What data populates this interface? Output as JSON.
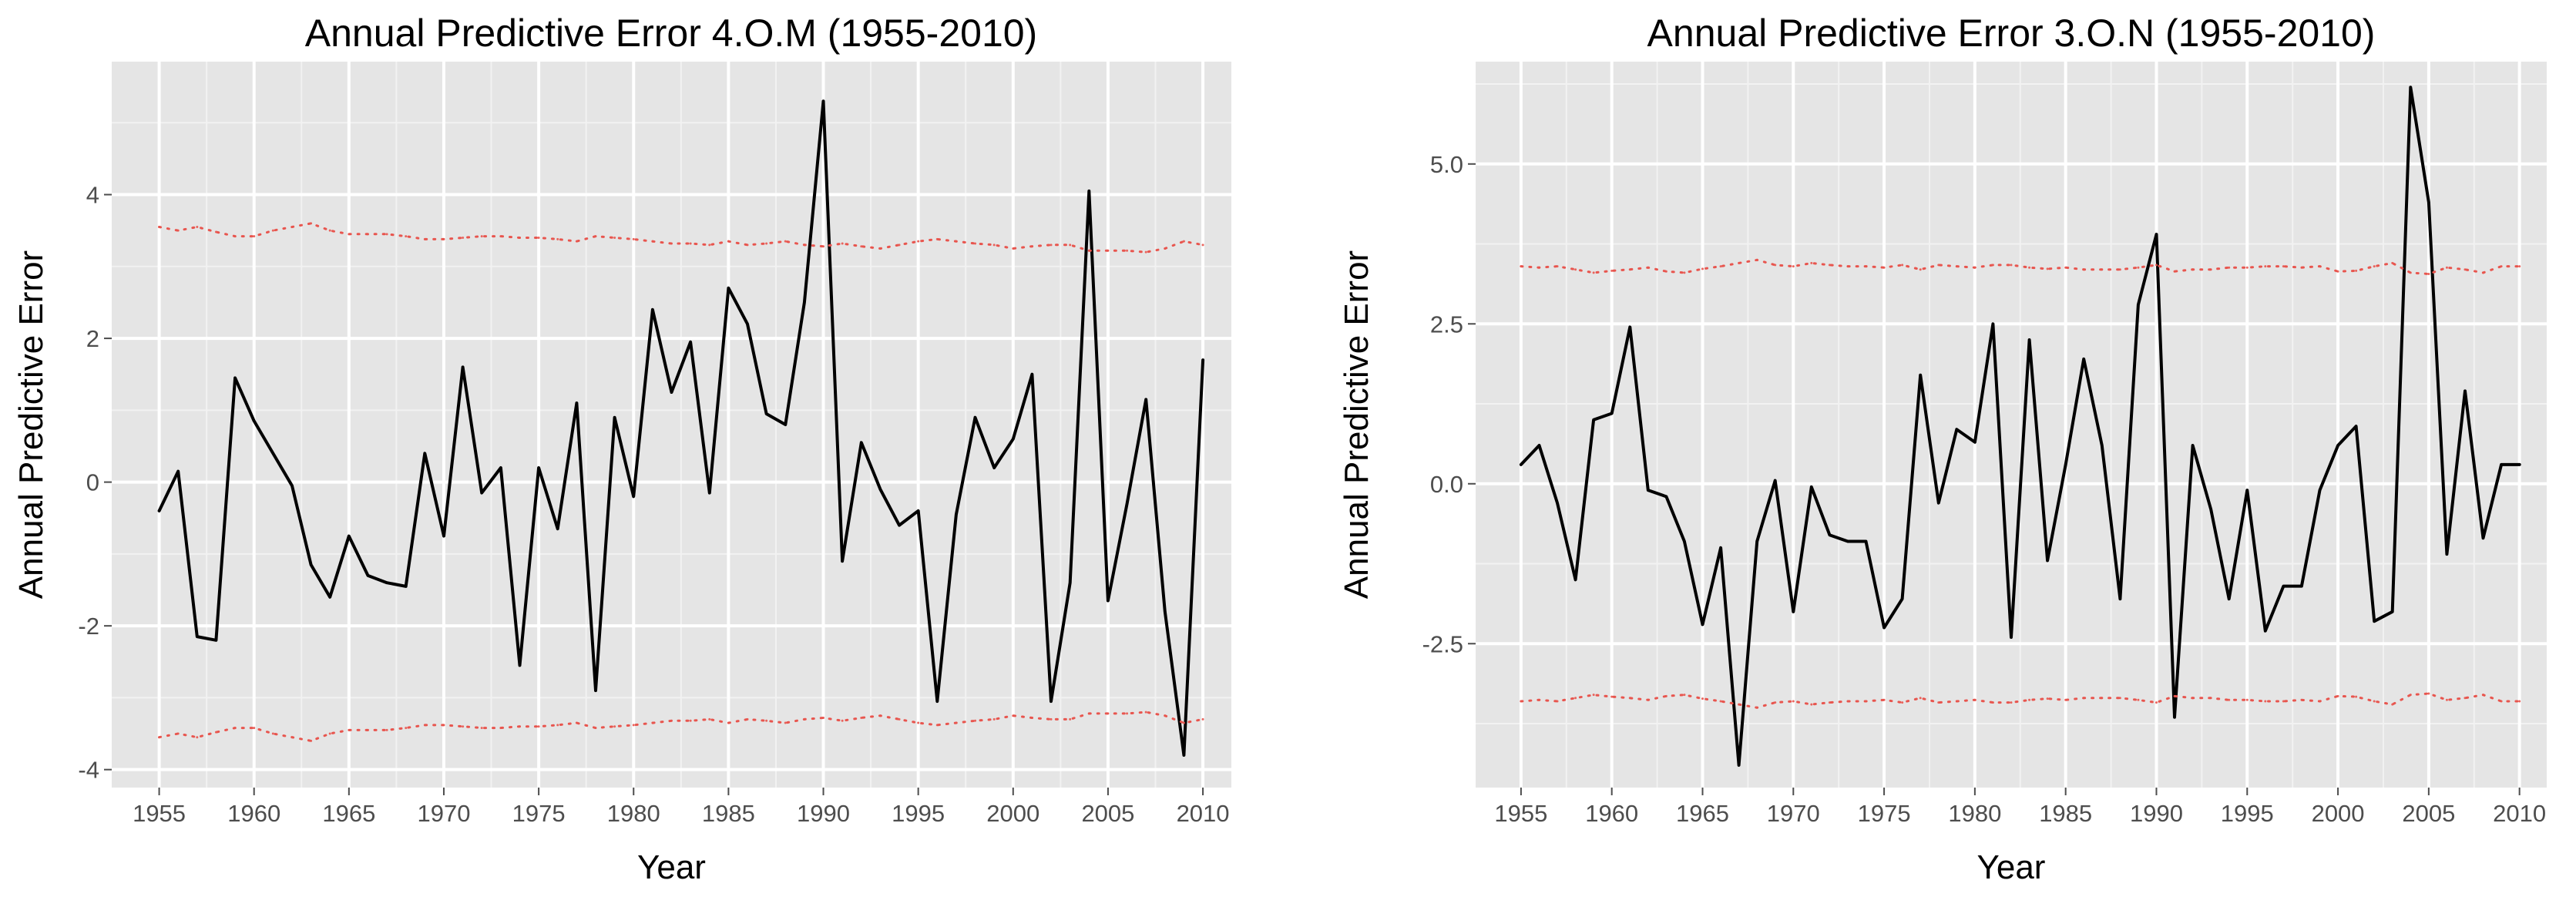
{
  "chart_data": [
    {
      "type": "line",
      "title": "Annual Predictive Error 4.O.M (1955-2010)",
      "xlabel": "Year",
      "ylabel": "Annual Predictive Error",
      "xlim": [
        1952.5,
        2011.5
      ],
      "ylim": [
        -4.25,
        5.85
      ],
      "xticks": [
        1955,
        1960,
        1965,
        1970,
        1975,
        1980,
        1985,
        1990,
        1995,
        2000,
        2005,
        2010
      ],
      "yticks": [
        -4,
        -2,
        0,
        2,
        4
      ],
      "ytick_labels": [
        "-4",
        "-2",
        "0",
        "2",
        "4"
      ],
      "ygrid_minor": [
        -3,
        -1,
        1,
        3,
        5
      ],
      "grid": true,
      "series": [
        {
          "name": "Annual predictive error",
          "style": "solid",
          "color": "#000000",
          "x": [
            1955,
            1956,
            1957,
            1958,
            1959,
            1960,
            1961,
            1962,
            1963,
            1964,
            1965,
            1966,
            1967,
            1968,
            1969,
            1970,
            1971,
            1972,
            1973,
            1974,
            1975,
            1976,
            1977,
            1978,
            1979,
            1980,
            1981,
            1982,
            1983,
            1984,
            1985,
            1986,
            1987,
            1988,
            1989,
            1990,
            1991,
            1992,
            1993,
            1994,
            1995,
            1996,
            1997,
            1998,
            1999,
            2000,
            2001,
            2002,
            2003,
            2004,
            2005,
            2006,
            2007,
            2008,
            2009,
            2010
          ],
          "y": [
            -0.4,
            0.15,
            -2.15,
            -2.2,
            1.45,
            0.85,
            0.4,
            -0.05,
            -1.15,
            -1.6,
            -0.75,
            -1.3,
            -1.4,
            -1.45,
            0.4,
            -0.75,
            1.6,
            -0.15,
            0.2,
            -2.55,
            0.2,
            -0.65,
            1.1,
            -2.9,
            0.9,
            -0.2,
            2.4,
            1.25,
            1.95,
            -0.15,
            2.7,
            2.2,
            0.95,
            0.8,
            2.5,
            5.3,
            -1.1,
            0.55,
            -0.1,
            -0.6,
            -0.4,
            -3.05,
            -0.45,
            0.9,
            0.2,
            0.6,
            1.5,
            -3.05,
            -1.4,
            4.05,
            -1.65,
            -0.3,
            1.15,
            -1.8,
            -3.8,
            1.7
          ]
        },
        {
          "name": "Upper bound",
          "style": "dotted",
          "color": "#e8554e",
          "x": [
            1955,
            1956,
            1957,
            1958,
            1959,
            1960,
            1961,
            1962,
            1963,
            1964,
            1965,
            1966,
            1967,
            1968,
            1969,
            1970,
            1971,
            1972,
            1973,
            1974,
            1975,
            1976,
            1977,
            1978,
            1979,
            1980,
            1981,
            1982,
            1983,
            1984,
            1985,
            1986,
            1987,
            1988,
            1989,
            1990,
            1991,
            1992,
            1993,
            1994,
            1995,
            1996,
            1997,
            1998,
            1999,
            2000,
            2001,
            2002,
            2003,
            2004,
            2005,
            2006,
            2007,
            2008,
            2009,
            2010
          ],
          "y": [
            3.55,
            3.5,
            3.55,
            3.48,
            3.42,
            3.42,
            3.5,
            3.55,
            3.6,
            3.5,
            3.45,
            3.45,
            3.45,
            3.42,
            3.38,
            3.38,
            3.4,
            3.42,
            3.42,
            3.4,
            3.4,
            3.38,
            3.35,
            3.42,
            3.4,
            3.38,
            3.35,
            3.32,
            3.32,
            3.3,
            3.35,
            3.3,
            3.32,
            3.35,
            3.3,
            3.28,
            3.32,
            3.28,
            3.25,
            3.3,
            3.35,
            3.38,
            3.35,
            3.32,
            3.3,
            3.25,
            3.28,
            3.3,
            3.3,
            3.22,
            3.22,
            3.22,
            3.2,
            3.25,
            3.35,
            3.3
          ]
        },
        {
          "name": "Lower bound",
          "style": "dotted",
          "color": "#e8554e",
          "x": [
            1955,
            1956,
            1957,
            1958,
            1959,
            1960,
            1961,
            1962,
            1963,
            1964,
            1965,
            1966,
            1967,
            1968,
            1969,
            1970,
            1971,
            1972,
            1973,
            1974,
            1975,
            1976,
            1977,
            1978,
            1979,
            1980,
            1981,
            1982,
            1983,
            1984,
            1985,
            1986,
            1987,
            1988,
            1989,
            1990,
            1991,
            1992,
            1993,
            1994,
            1995,
            1996,
            1997,
            1998,
            1999,
            2000,
            2001,
            2002,
            2003,
            2004,
            2005,
            2006,
            2007,
            2008,
            2009,
            2010
          ],
          "y": [
            -3.55,
            -3.5,
            -3.55,
            -3.48,
            -3.42,
            -3.42,
            -3.5,
            -3.55,
            -3.6,
            -3.5,
            -3.45,
            -3.45,
            -3.45,
            -3.42,
            -3.38,
            -3.38,
            -3.4,
            -3.42,
            -3.42,
            -3.4,
            -3.4,
            -3.38,
            -3.35,
            -3.42,
            -3.4,
            -3.38,
            -3.35,
            -3.32,
            -3.32,
            -3.3,
            -3.35,
            -3.3,
            -3.32,
            -3.35,
            -3.3,
            -3.28,
            -3.32,
            -3.28,
            -3.25,
            -3.3,
            -3.35,
            -3.38,
            -3.35,
            -3.32,
            -3.3,
            -3.25,
            -3.28,
            -3.3,
            -3.3,
            -3.22,
            -3.22,
            -3.22,
            -3.2,
            -3.25,
            -3.35,
            -3.3
          ]
        }
      ]
    },
    {
      "type": "line",
      "title": "Annual Predictive Error 3.O.N (1955-2010)",
      "xlabel": "Year",
      "ylabel": "Annual Predictive Error",
      "xlim": [
        1952.5,
        2011.5
      ],
      "ylim": [
        -4.75,
        6.6
      ],
      "xticks": [
        1955,
        1960,
        1965,
        1970,
        1975,
        1980,
        1985,
        1990,
        1995,
        2000,
        2005,
        2010
      ],
      "yticks": [
        -2.5,
        0,
        2.5,
        5
      ],
      "ytick_labels": [
        "-2.5",
        "0.0",
        "2.5",
        "5.0"
      ],
      "ygrid_minor": [
        -3.75,
        -1.25,
        1.25,
        3.75,
        6.25
      ],
      "grid": true,
      "series": [
        {
          "name": "Annual predictive error",
          "style": "solid",
          "color": "#000000",
          "x": [
            1955,
            1956,
            1957,
            1958,
            1959,
            1960,
            1961,
            1962,
            1963,
            1964,
            1965,
            1966,
            1967,
            1968,
            1969,
            1970,
            1971,
            1972,
            1973,
            1974,
            1975,
            1976,
            1977,
            1978,
            1979,
            1980,
            1981,
            1982,
            1983,
            1984,
            1985,
            1986,
            1987,
            1988,
            1989,
            1990,
            1991,
            1992,
            1993,
            1994,
            1995,
            1996,
            1997,
            1998,
            1999,
            2000,
            2001,
            2002,
            2003,
            2004,
            2005,
            2006,
            2007,
            2008,
            2009,
            2010
          ],
          "y": [
            0.3,
            0.6,
            -0.3,
            -1.5,
            1.0,
            1.1,
            2.45,
            -0.1,
            -0.2,
            -0.9,
            -2.2,
            -1.0,
            -4.4,
            -0.9,
            0.05,
            -2.0,
            -0.05,
            -0.8,
            -0.9,
            -0.9,
            -2.25,
            -1.8,
            1.7,
            -0.3,
            0.85,
            0.65,
            2.5,
            -2.4,
            2.25,
            -1.2,
            0.3,
            1.95,
            0.6,
            -1.8,
            2.8,
            3.9,
            -3.65,
            0.6,
            -0.4,
            -1.8,
            -0.1,
            -2.3,
            -1.6,
            -1.6,
            -0.1,
            0.6,
            0.9,
            -2.15,
            -2.0,
            6.2,
            4.4,
            -1.1,
            1.45,
            -0.85,
            0.3,
            0.3
          ]
        },
        {
          "name": "Upper bound",
          "style": "dotted",
          "color": "#e8554e",
          "x": [
            1955,
            1956,
            1957,
            1958,
            1959,
            1960,
            1961,
            1962,
            1963,
            1964,
            1965,
            1966,
            1967,
            1968,
            1969,
            1970,
            1971,
            1972,
            1973,
            1974,
            1975,
            1976,
            1977,
            1978,
            1979,
            1980,
            1981,
            1982,
            1983,
            1984,
            1985,
            1986,
            1987,
            1988,
            1989,
            1990,
            1991,
            1992,
            1993,
            1994,
            1995,
            1996,
            1997,
            1998,
            1999,
            2000,
            2001,
            2002,
            2003,
            2004,
            2005,
            2006,
            2007,
            2008,
            2009,
            2010
          ],
          "y": [
            3.4,
            3.38,
            3.4,
            3.35,
            3.3,
            3.33,
            3.35,
            3.38,
            3.32,
            3.3,
            3.36,
            3.4,
            3.45,
            3.5,
            3.42,
            3.4,
            3.45,
            3.42,
            3.4,
            3.4,
            3.38,
            3.42,
            3.35,
            3.42,
            3.4,
            3.38,
            3.42,
            3.42,
            3.38,
            3.36,
            3.38,
            3.35,
            3.35,
            3.35,
            3.38,
            3.42,
            3.32,
            3.35,
            3.35,
            3.38,
            3.38,
            3.4,
            3.4,
            3.38,
            3.4,
            3.32,
            3.33,
            3.4,
            3.45,
            3.3,
            3.28,
            3.38,
            3.35,
            3.3,
            3.4,
            3.4
          ]
        },
        {
          "name": "Lower bound",
          "style": "dotted",
          "color": "#e8554e",
          "x": [
            1955,
            1956,
            1957,
            1958,
            1959,
            1960,
            1961,
            1962,
            1963,
            1964,
            1965,
            1966,
            1967,
            1968,
            1969,
            1970,
            1971,
            1972,
            1973,
            1974,
            1975,
            1976,
            1977,
            1978,
            1979,
            1980,
            1981,
            1982,
            1983,
            1984,
            1985,
            1986,
            1987,
            1988,
            1989,
            1990,
            1991,
            1992,
            1993,
            1994,
            1995,
            1996,
            1997,
            1998,
            1999,
            2000,
            2001,
            2002,
            2003,
            2004,
            2005,
            2006,
            2007,
            2008,
            2009,
            2010
          ],
          "y": [
            -3.4,
            -3.38,
            -3.4,
            -3.35,
            -3.3,
            -3.33,
            -3.35,
            -3.38,
            -3.32,
            -3.3,
            -3.36,
            -3.4,
            -3.45,
            -3.5,
            -3.42,
            -3.4,
            -3.45,
            -3.42,
            -3.4,
            -3.4,
            -3.38,
            -3.42,
            -3.35,
            -3.42,
            -3.4,
            -3.38,
            -3.42,
            -3.42,
            -3.38,
            -3.36,
            -3.38,
            -3.35,
            -3.35,
            -3.35,
            -3.38,
            -3.42,
            -3.32,
            -3.35,
            -3.35,
            -3.38,
            -3.38,
            -3.4,
            -3.4,
            -3.38,
            -3.4,
            -3.32,
            -3.33,
            -3.4,
            -3.45,
            -3.3,
            -3.28,
            -3.38,
            -3.35,
            -3.3,
            -3.4,
            -3.4
          ]
        }
      ]
    }
  ]
}
